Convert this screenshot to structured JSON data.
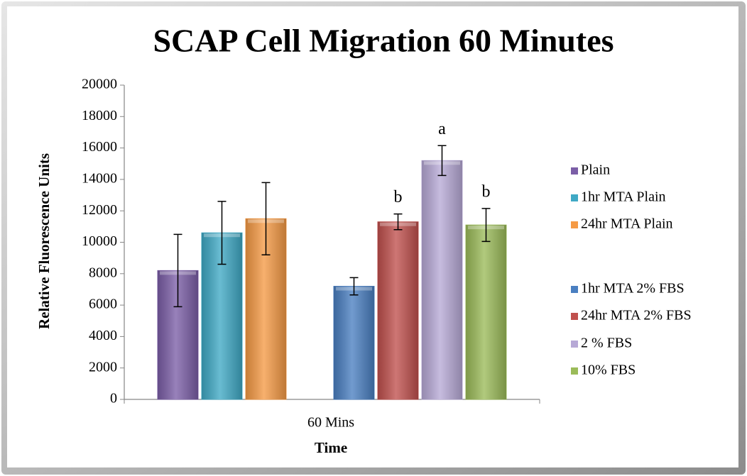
{
  "chart_data": {
    "type": "bar",
    "title": "SCAP Cell Migration 60 Minutes",
    "x_label": "Time",
    "y_label": "Relative Fluorescence Units",
    "categories": [
      "60 Mins"
    ],
    "series": [
      {
        "name": "Plain",
        "color": "#7b5ea7",
        "values": [
          8200
        ],
        "errors": [
          2300
        ]
      },
      {
        "name": "1hr MTA Plain",
        "color": "#3fa9c5",
        "values": [
          10600
        ],
        "errors": [
          2000
        ]
      },
      {
        "name": "24hr MTA Plain",
        "color": "#f59a45",
        "values": [
          11500
        ],
        "errors": [
          2300
        ]
      },
      {
        "name": "1hr MTA 2% FBS",
        "color": "#4a7fc1",
        "values": [
          7200
        ],
        "errors": [
          550
        ]
      },
      {
        "name": "24hr MTA 2% FBS",
        "color": "#c0504d",
        "values": [
          11300
        ],
        "errors": [
          500
        ],
        "annotation": "b"
      },
      {
        "name": "2 % FBS",
        "color": "#b7a9d6",
        "values": [
          15200
        ],
        "errors": [
          950
        ],
        "annotation": "a"
      },
      {
        "name": "10% FBS",
        "color": "#9bbb59",
        "values": [
          11100
        ],
        "errors": [
          1050
        ],
        "annotation": "b"
      }
    ],
    "ylim": [
      0,
      20000
    ],
    "yticks": [
      0,
      2000,
      4000,
      6000,
      8000,
      10000,
      12000,
      14000,
      16000,
      18000,
      20000
    ],
    "grid": false,
    "legend": "right"
  }
}
